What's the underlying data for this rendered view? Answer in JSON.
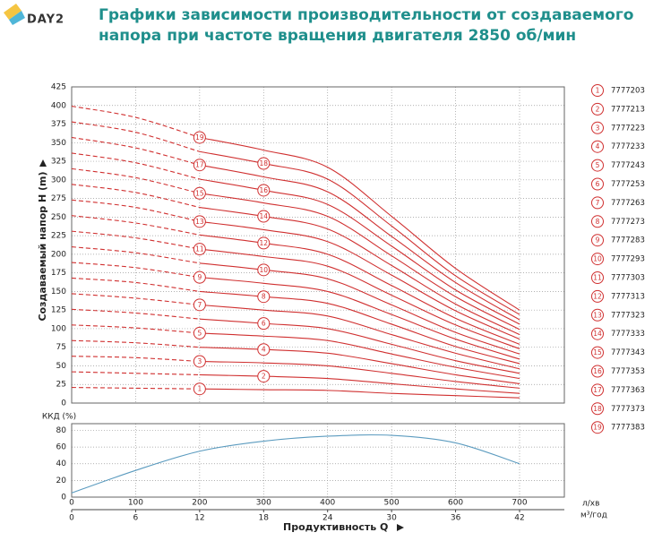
{
  "header": {
    "logo": "DAY2",
    "title": [
      "Графики зависимости производительности от создаваемого",
      "напора при частоте вращения двигателя 2850 об/мин"
    ]
  },
  "chart_data": [
    {
      "type": "line",
      "ylabel": "Создаваемый напор H (m)",
      "dashed_x_max": 200,
      "x": [
        0,
        100,
        200,
        300,
        400,
        500,
        600,
        700
      ],
      "xlim": [
        0,
        770
      ],
      "xticks": [
        0,
        100,
        200,
        300,
        400,
        500,
        600,
        700
      ],
      "ylim": [
        0,
        425
      ],
      "yticks": [
        0,
        25,
        50,
        75,
        100,
        125,
        150,
        175,
        200,
        225,
        250,
        275,
        300,
        325,
        350,
        375,
        400,
        425
      ],
      "grid": true,
      "series": [
        {
          "label": "1",
          "name": "7777203",
          "color": "#d03030",
          "values": [
            21,
            20,
            19,
            18,
            17,
            13,
            10,
            7
          ]
        },
        {
          "label": "2",
          "name": "7777213",
          "color": "#d03030",
          "values": [
            42,
            40,
            38,
            36,
            33,
            26,
            19,
            13
          ]
        },
        {
          "label": "3",
          "name": "7777223",
          "color": "#d03030",
          "values": [
            63,
            61,
            56,
            54,
            50,
            40,
            29,
            20
          ]
        },
        {
          "label": "4",
          "name": "7777233",
          "color": "#d03030",
          "values": [
            84,
            81,
            75,
            72,
            67,
            53,
            38,
            26
          ]
        },
        {
          "label": "5",
          "name": "7777243",
          "color": "#d03030",
          "values": [
            105,
            101,
            94,
            90,
            84,
            66,
            48,
            33
          ]
        },
        {
          "label": "6",
          "name": "7777253",
          "color": "#d03030",
          "values": [
            126,
            121,
            113,
            107,
            100,
            79,
            57,
            40
          ]
        },
        {
          "label": "7",
          "name": "7777263",
          "color": "#d03030",
          "values": [
            147,
            141,
            132,
            125,
            117,
            92,
            67,
            46
          ]
        },
        {
          "label": "8",
          "name": "7777273",
          "color": "#d03030",
          "values": [
            168,
            162,
            150,
            143,
            134,
            106,
            76,
            53
          ]
        },
        {
          "label": "9",
          "name": "7777283",
          "color": "#d03030",
          "values": [
            189,
            182,
            169,
            161,
            150,
            119,
            86,
            59
          ]
        },
        {
          "label": "10",
          "name": "7777293",
          "color": "#d03030",
          "values": [
            210,
            202,
            188,
            179,
            167,
            132,
            95,
            66
          ]
        },
        {
          "label": "11",
          "name": "7777303",
          "color": "#d03030",
          "values": [
            231,
            222,
            207,
            197,
            184,
            145,
            105,
            73
          ]
        },
        {
          "label": "12",
          "name": "7777313",
          "color": "#d03030",
          "values": [
            252,
            242,
            226,
            215,
            200,
            158,
            114,
            79
          ]
        },
        {
          "label": "13",
          "name": "7777323",
          "color": "#d03030",
          "values": [
            273,
            263,
            244,
            233,
            217,
            172,
            124,
            86
          ]
        },
        {
          "label": "14",
          "name": "7777333",
          "color": "#d03030",
          "values": [
            294,
            283,
            263,
            251,
            234,
            185,
            133,
            92
          ]
        },
        {
          "label": "15",
          "name": "7777343",
          "color": "#d03030",
          "values": [
            315,
            303,
            282,
            269,
            251,
            198,
            143,
            99
          ]
        },
        {
          "label": "16",
          "name": "7777353",
          "color": "#d03030",
          "values": [
            336,
            323,
            301,
            286,
            267,
            211,
            152,
            106
          ]
        },
        {
          "label": "17",
          "name": "7777363",
          "color": "#d03030",
          "values": [
            357,
            343,
            320,
            304,
            284,
            224,
            162,
            112
          ]
        },
        {
          "label": "18",
          "name": "7777373",
          "color": "#d03030",
          "values": [
            378,
            364,
            338,
            322,
            301,
            238,
            171,
            119
          ]
        },
        {
          "label": "19",
          "name": "7777383",
          "color": "#d03030",
          "values": [
            399,
            384,
            357,
            340,
            317,
            251,
            181,
            125
          ]
        }
      ]
    },
    {
      "type": "line",
      "ylabel": "ККД (%)",
      "xlabel": "Продуктивность Q",
      "xunit": "л/хв",
      "x2unit": "м³/год",
      "x": [
        0,
        100,
        200,
        300,
        400,
        500,
        600,
        700
      ],
      "xlim": [
        0,
        770
      ],
      "xticks": [
        0,
        100,
        200,
        300,
        400,
        500,
        600,
        700
      ],
      "x2lim": [
        0,
        46.2
      ],
      "x2ticks": [
        0,
        6,
        12,
        18,
        24,
        30,
        36,
        42
      ],
      "ylim": [
        0,
        88
      ],
      "yticks": [
        0,
        20,
        40,
        60,
        80
      ],
      "grid": true,
      "series": [
        {
          "color": "#5b9bbf",
          "values": [
            5,
            32,
            55,
            67,
            73,
            74,
            65,
            40
          ]
        }
      ]
    }
  ]
}
